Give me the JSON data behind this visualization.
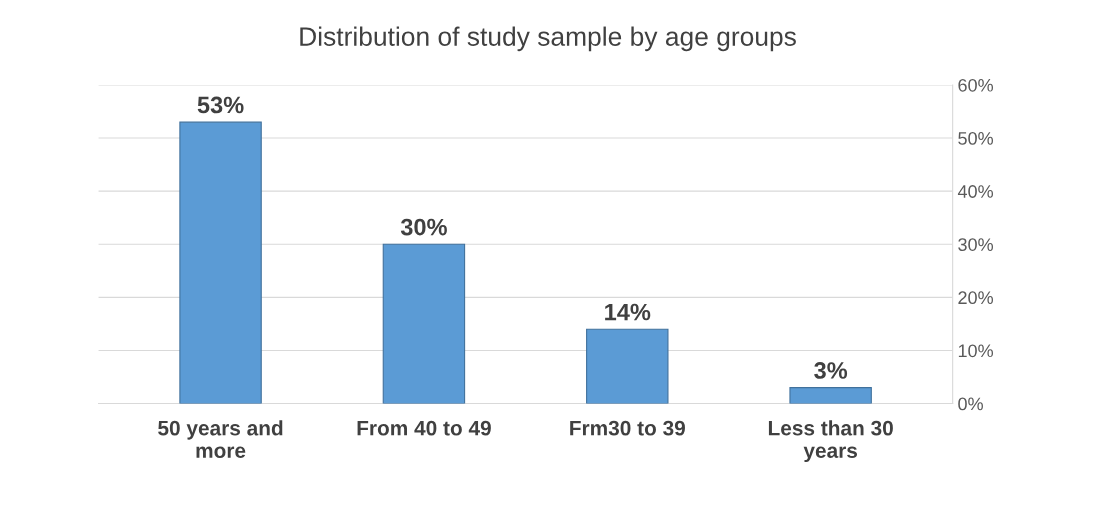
{
  "chart_data": {
    "type": "bar",
    "title": "Distribution of study sample by age groups",
    "categories": [
      "50 years and\nmore",
      "From 40 to 49",
      "Frm30 to 39",
      "Less than 30\nyears"
    ],
    "values": [
      53,
      30,
      14,
      3
    ],
    "color": "#5b9bd5",
    "value_labels": [
      "53%",
      "30%",
      "14%",
      "3%"
    ],
    "ylim": [
      0,
      60
    ],
    "yticks": [
      {
        "value": 0,
        "label": "0%"
      },
      {
        "value": 10,
        "label": "10%"
      },
      {
        "value": 20,
        "label": "20%"
      },
      {
        "value": 30,
        "label": "30%"
      },
      {
        "value": 40,
        "label": "40%"
      },
      {
        "value": 50,
        "label": "50%"
      },
      {
        "value": 60,
        "label": "60%"
      }
    ],
    "grid": "y"
  }
}
